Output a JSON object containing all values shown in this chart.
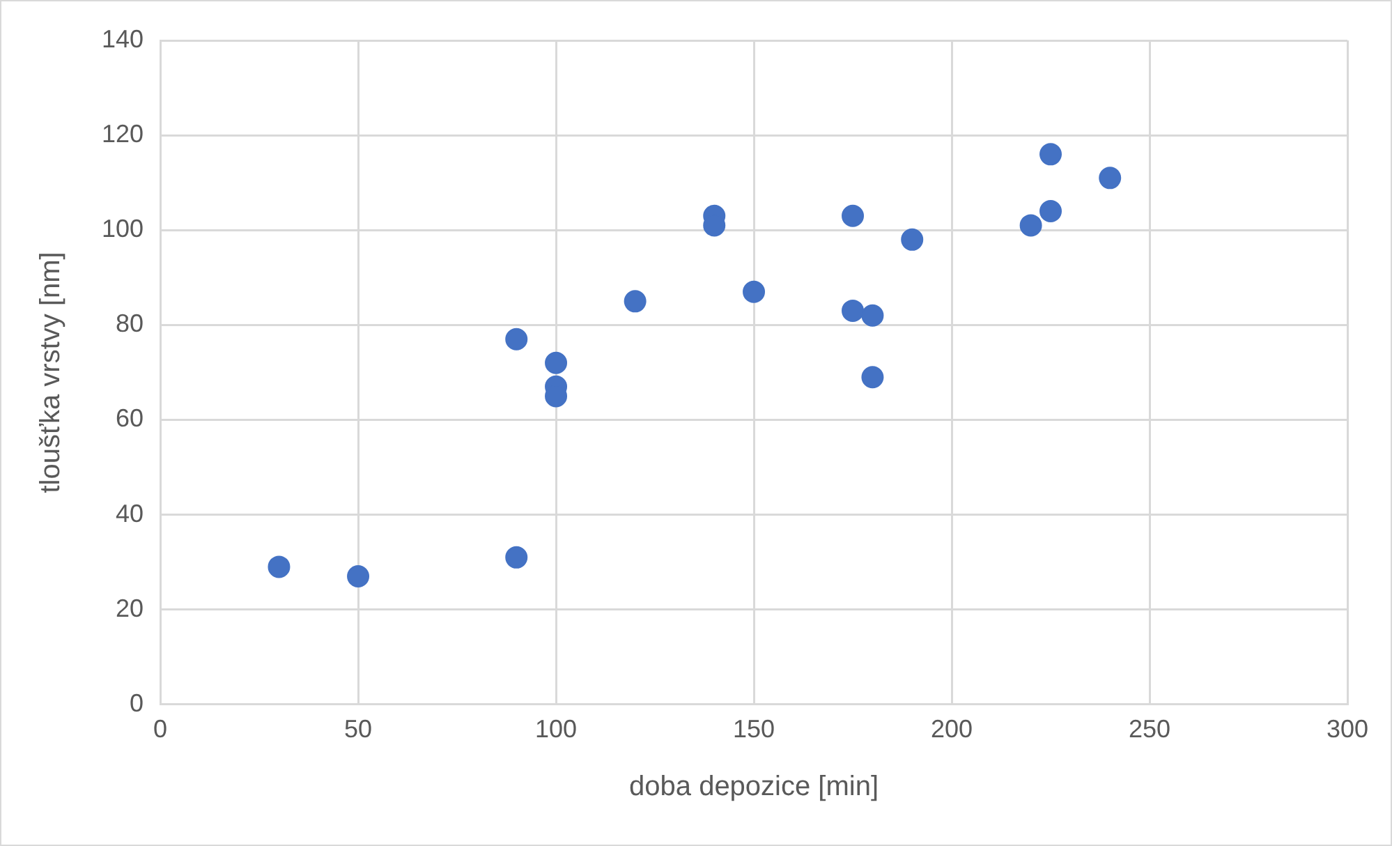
{
  "chart_data": {
    "type": "scatter",
    "xlabel": "doba depozice [min]",
    "ylabel": "tloušťka vrstvy [nm]",
    "x": [
      30,
      50,
      90,
      90,
      100,
      100,
      100,
      120,
      140,
      140,
      150,
      175,
      175,
      180,
      180,
      190,
      220,
      225,
      225,
      240
    ],
    "values": [
      29,
      27,
      31,
      77,
      72,
      67,
      65,
      85,
      103,
      101,
      87,
      103,
      83,
      82,
      69,
      98,
      101,
      116,
      104,
      111
    ],
    "color": "#4472c4",
    "marker": "circle",
    "xlim": [
      0,
      300
    ],
    "xticks": [
      0,
      50,
      100,
      150,
      200,
      250,
      300
    ],
    "ylim": [
      0,
      140
    ],
    "yticks": [
      0,
      20,
      40,
      60,
      80,
      100,
      120,
      140
    ],
    "grid": true,
    "legend": false
  }
}
